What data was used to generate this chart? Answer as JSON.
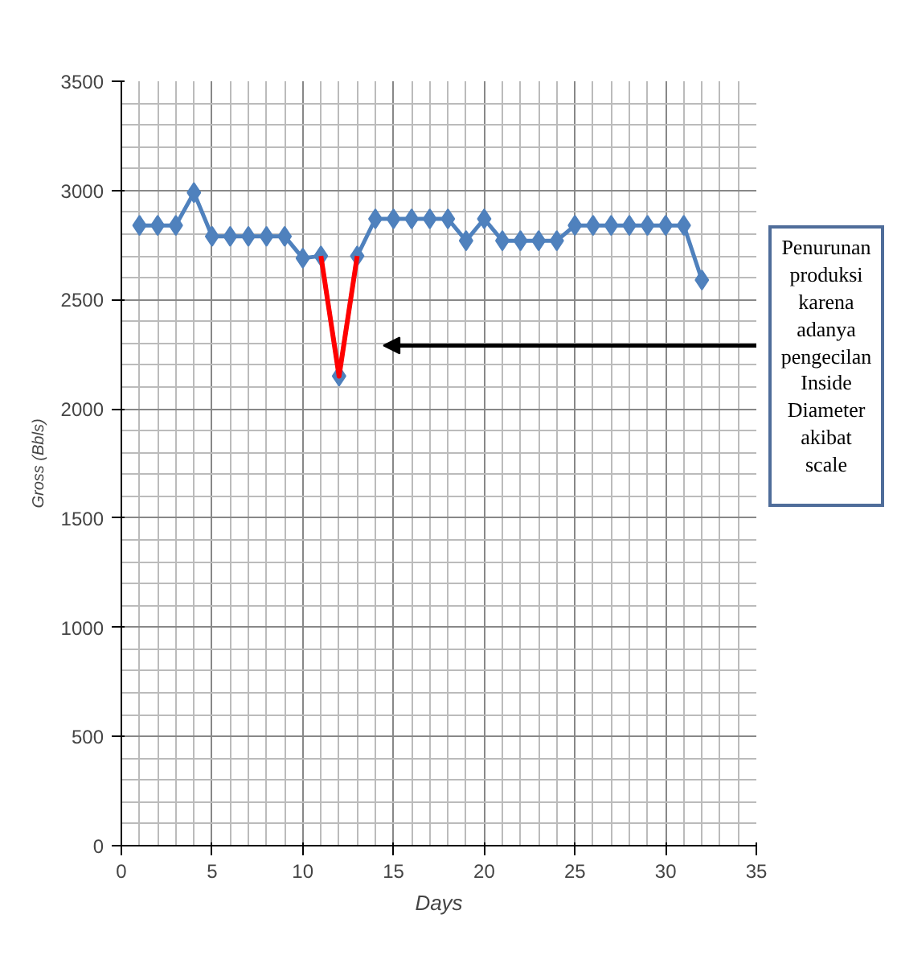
{
  "chart_data": {
    "type": "line",
    "xlabel": "Days",
    "ylabel": "Gross (Bbls)",
    "x": [
      1,
      2,
      3,
      4,
      5,
      6,
      7,
      8,
      9,
      10,
      11,
      12,
      13,
      14,
      15,
      16,
      17,
      18,
      19,
      20,
      21,
      22,
      23,
      24,
      25,
      26,
      27,
      28,
      29,
      30,
      31,
      32
    ],
    "series": [
      {
        "color": "#4f81bd",
        "marker": "diamond",
        "values": [
          2840,
          2840,
          2840,
          2990,
          2790,
          2790,
          2790,
          2790,
          2790,
          2690,
          2700,
          2150,
          2700,
          2870,
          2870,
          2870,
          2870,
          2870,
          2770,
          2870,
          2770,
          2770,
          2770,
          2770,
          2840,
          2840,
          2840,
          2840,
          2840,
          2840,
          2840,
          2590
        ]
      },
      {
        "color": "#ff0000",
        "marker": "none",
        "x": [
          11,
          12,
          13
        ],
        "values": [
          2700,
          2150,
          2700
        ]
      }
    ],
    "xlim": [
      0,
      35
    ],
    "xticks": [
      0,
      5,
      10,
      15,
      20,
      25,
      30,
      35
    ],
    "ylim": [
      0,
      3500
    ],
    "yticks": [
      0,
      500,
      1000,
      1500,
      2000,
      2500,
      3000,
      3500
    ],
    "grid": true,
    "annotations": [
      "Penurunan\nproduksi\nkarena\nadanya\npengecilan\nInside\nDiameter\nakibat\nscale"
    ]
  }
}
